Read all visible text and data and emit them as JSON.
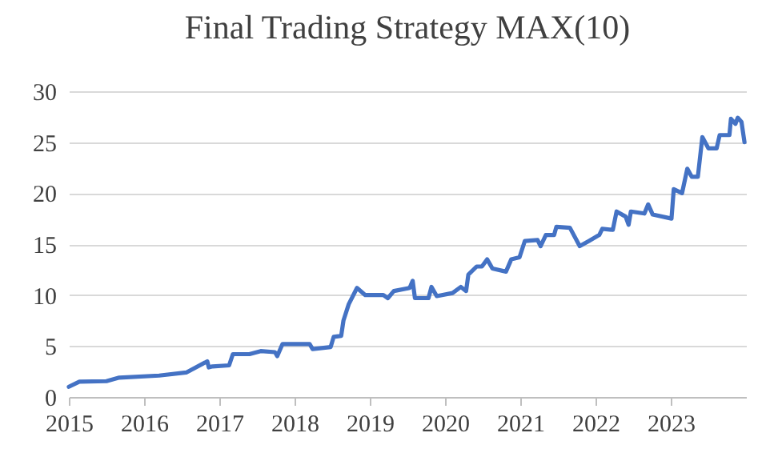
{
  "chart_data": {
    "type": "line",
    "title": "Final Trading Strategy MAX(10)",
    "x": [
      2015.0,
      2015.14,
      2015.5,
      2015.67,
      2016.2,
      2016.56,
      2016.84,
      2016.86,
      2016.91,
      2017.13,
      2017.18,
      2017.4,
      2017.55,
      2017.74,
      2017.77,
      2017.84,
      2018.2,
      2018.24,
      2018.48,
      2018.52,
      2018.62,
      2018.65,
      2018.72,
      2018.83,
      2018.94,
      2019.18,
      2019.24,
      2019.32,
      2019.53,
      2019.57,
      2019.6,
      2019.78,
      2019.82,
      2019.89,
      2020.1,
      2020.21,
      2020.28,
      2020.31,
      2020.42,
      2020.49,
      2020.56,
      2020.63,
      2020.81,
      2020.88,
      2020.99,
      2021.06,
      2021.23,
      2021.27,
      2021.34,
      2021.45,
      2021.48,
      2021.66,
      2021.79,
      2021.91,
      2022.05,
      2022.09,
      2022.23,
      2022.28,
      2022.4,
      2022.44,
      2022.47,
      2022.65,
      2022.7,
      2022.76,
      2023.01,
      2023.04,
      2023.15,
      2023.22,
      2023.28,
      2023.36,
      2023.42,
      2023.5,
      2023.61,
      2023.65,
      2023.78,
      2023.8,
      2023.86,
      2023.89,
      2023.94,
      2023.98
    ],
    "series": [
      {
        "color": "#4472c4",
        "values": [
          1.0,
          1.5,
          1.55,
          1.9,
          2.1,
          2.4,
          3.5,
          2.9,
          3.0,
          3.1,
          4.2,
          4.2,
          4.5,
          4.4,
          4.0,
          5.2,
          5.2,
          4.7,
          4.9,
          5.9,
          6.0,
          7.5,
          9.1,
          10.7,
          10.0,
          10.0,
          9.7,
          10.4,
          10.7,
          11.4,
          9.7,
          9.7,
          10.8,
          9.9,
          10.2,
          10.8,
          10.4,
          12.0,
          12.8,
          12.8,
          13.5,
          12.6,
          12.3,
          13.5,
          13.7,
          15.3,
          15.4,
          14.8,
          15.9,
          15.9,
          16.7,
          16.6,
          14.8,
          15.3,
          15.9,
          16.5,
          16.4,
          18.2,
          17.7,
          16.9,
          18.2,
          18.0,
          18.9,
          17.9,
          17.5,
          20.4,
          20.0,
          22.4,
          21.6,
          21.6,
          25.5,
          24.4,
          24.4,
          25.7,
          25.7,
          27.3,
          26.8,
          27.4,
          27.0,
          25.0
        ]
      }
    ],
    "xlim": [
      2015,
      2024
    ],
    "xticks": [
      2015,
      2016,
      2017,
      2018,
      2019,
      2020,
      2021,
      2022,
      2023
    ],
    "ylim": [
      0,
      30
    ],
    "yticks": [
      0,
      5,
      10,
      15,
      20,
      25,
      30
    ],
    "grid": "y",
    "line_style": "solid"
  }
}
